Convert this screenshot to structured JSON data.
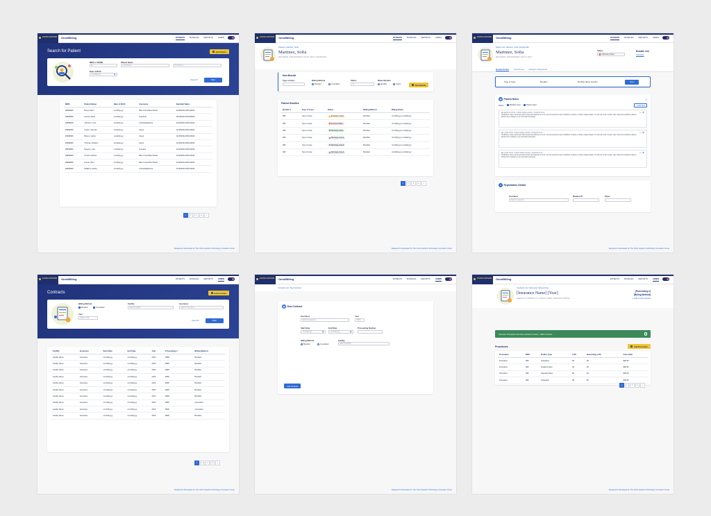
{
  "header": {
    "logo_text": "JOHNS HOPKINS",
    "app_name": "OmniBilling",
    "nav": [
      "PATIENTS",
      "BUNDLES",
      "REPORTS",
      "ADMIN"
    ]
  },
  "footer": "Designed & Developed by The Johns Hopkins Technology Innovation Group",
  "search": {
    "title": "Search for Patient",
    "add_btn": "Add Patient",
    "mrn_label": "MRN or FIN/MI",
    "mrn_value": "1",
    "name_label": "Patient Name",
    "last_ph": "Last Name",
    "first_ph": "First Name",
    "dob_label": "Date of Birth",
    "dob_ph": "mm/dd/yyyy",
    "clear": "Clear All",
    "filter": "Filter",
    "columns": [
      "MRN",
      "Patient Name",
      "Date of Birth",
      "Insurance",
      "Bundled Dates"
    ],
    "rows": [
      [
        "########",
        "Reed, Aiden",
        "mm/dd/yyyy",
        "Blue Cross Blue Shield",
        "11/18/2024-05/13/2024"
      ],
      [
        "########",
        "Garcia, Maria",
        "mm/dd/yyyy",
        "CareFirst",
        "09/19/2024-05/19/2024"
      ],
      [
        "########",
        "Johnson, Lena",
        "mm/dd/yyyy",
        "UnitedHealthcare",
        "11/18/2024-05/13/2024"
      ],
      [
        "########",
        "Cohen, Hannah",
        "mm/dd/yyyy",
        "Cigna",
        "11/18/2024-05/13/2024"
      ],
      [
        "########",
        "Rivera, Carlos",
        "mm/dd/yyyy",
        "Cigna",
        "11/18/2024-05/13/2024"
      ],
      [
        "########",
        "Thomas, Rosalyn",
        "mm/dd/yyyy",
        "Aetna",
        "11/18/2024-05/13/2024"
      ],
      [
        "########",
        "Nguyen, Liam",
        "mm/dd/yyyy",
        "Humana",
        "11/18/2024-05/13/2024"
      ],
      [
        "########",
        "Al Fard, Fatima",
        "mm/dd/yyyy",
        "Blue Cross Blue Shield",
        "11/18/2024-05/13/2024"
      ],
      [
        "########",
        "Kumar, Ravi",
        "mm/dd/yyyy",
        "Blue Cross Blue Shield",
        "11/18/2024-05/13/2024"
      ],
      [
        "########",
        "Williams, Ashley",
        "mm/dd/yyyy",
        "UnitedHealthcare",
        "11/18/2024-05/13/2024"
      ]
    ],
    "pages": [
      "1",
      "2",
      "3",
      "4",
      "»"
    ]
  },
  "bundles": {
    "breadcrumb": "Patients / Martinez, Sofia",
    "patient_name": "Martinez, Sofia",
    "patient_meta": "MRN 000000  |  DOB 00/00/0000  |  AGE 00  |  SEX F  |  INSURANCE",
    "new_bundle": {
      "title": "New Bundle",
      "type_label": "Type of Case",
      "billing_label": "Billing Method",
      "billing_opts": [
        "Bundled",
        "Consultant"
      ],
      "status_label": "Status",
      "status_value": "All",
      "name_label": "Name Number",
      "name_opts": [
        "Monthly",
        "Yearly"
      ],
      "add_btn": "Add Bundle"
    },
    "section": "Patient Bundles",
    "columns": [
      "Bundle #",
      "Type of Case",
      "Status",
      "Billing Method",
      "Billing Dates"
    ],
    "rows": [
      {
        "num": "###",
        "type": "Type of case",
        "status": "Evaluation phase",
        "color": "#e9a21f",
        "bg": "#fdf2d6",
        "method": "Bundled",
        "dates": "mm/dd/yyyy-mm/dd/yyyy"
      },
      {
        "num": "###",
        "type": "Type of case",
        "status": "Interview phase",
        "color": "#d94b4b",
        "bg": "#fbe0e0",
        "method": "Bundled",
        "dates": "mm/dd/yyyy-mm/dd/yyyy"
      },
      {
        "num": "###",
        "type": "Type of case",
        "status": "Discharge active",
        "color": "#3c9d5a",
        "bg": "#dcf1e2",
        "method": "Bundled",
        "dates": "mm/dd/yyyy-mm/dd/yyyy"
      },
      {
        "num": "###",
        "type": "Type of case",
        "status": "Discharge closed",
        "color": "#7a7f8a",
        "bg": "#e9eaee",
        "method": "Bundled",
        "dates": "mm/dd/yyyy-mm/dd/yyyy"
      },
      {
        "num": "###",
        "type": "Type of case",
        "status": "Discharge closed",
        "color": "#7a7f8a",
        "bg": "#e9eaee",
        "method": "Bundled",
        "dates": "mm/dd/yyyy-mm/dd/yyyy"
      },
      {
        "num": "###",
        "type": "Type of case",
        "status": "Discharge closed",
        "color": "#7a7f8a",
        "bg": "#e9eaee",
        "method": "Bundled",
        "dates": "mm/dd/yyyy-mm/dd/yyyy"
      }
    ],
    "pages": [
      "1",
      "2",
      "3",
      "4",
      "»"
    ]
  },
  "bundle_detail": {
    "breadcrumb": "Patient List / Martinez, Sofia / Bundle ###",
    "patient_name": "Martinez, Sofia",
    "patient_meta": "MRN 000000  |  DOB 00/00/0000  |  AGE 00  |  SEX F",
    "status_label": "Status",
    "status_value": "Unknown phase",
    "bundle_no": "Bundle ###",
    "bundle_sub": "Subscribe",
    "tabs": [
      "Bundle Details",
      "Events Log",
      "Charges & Payments"
    ],
    "summary": [
      "Type of Case",
      "Bundled",
      "Monthly Name Number"
    ],
    "summary_btn": "Save",
    "notes_title": "Patient Notes",
    "notes_filter": "Filters:",
    "notes_opts": [
      "Medical notes",
      "Claims notes"
    ],
    "add_note": "Add Note",
    "note_meta": [
      "MEDICAL NOTE | USER NAME (LEVEL) | 00/00/00 00:00",
      "CLAIM NOTE | USER NAME (LEVEL) | 00/00/00 00:00",
      "CLAIM NOTE | USER NAME (LEVEL) | 00/00/00 00:00"
    ],
    "note_text": "Vestibulum, dolor, accumsan felis tempor quis lacinia vel ut elit, sed do eiusmod tempor incididunt ut labore et dolore magna aliqua. Ut enim ad minim veniam, quis nostrud exercitation ullamco laboris nisi ut aliquip ex ea commodo consequat.",
    "reg_title": "Registration Details",
    "reg_ins_label": "Insurance",
    "reg_ins_ph": "Select Insurance",
    "reg_member_label": "Member ID",
    "reg_payer_label": "Payer"
  },
  "contracts": {
    "title": "Contracts",
    "add_btn": "Add Contract",
    "billing_label": "Billing Method",
    "billing_opts": [
      "Bundled",
      "Consultant"
    ],
    "facility_label": "Facility",
    "facility_ph": "Select Facility",
    "insurance_label": "Insurance",
    "insurance_ph": "Select Insurance",
    "year_label": "Year",
    "year_ph": "Select Year",
    "clear": "Clear All",
    "filter": "Filter",
    "columns": [
      "Facility",
      "Insurance",
      "Start Date",
      "End Date",
      "Year",
      "Proceeding #",
      "Billing Method"
    ],
    "rows": [
      [
        "Facility Name",
        "Insurance",
        "mm/dd/yyyy",
        "mm/dd/yyyy",
        "2023",
        "####",
        "Bundled"
      ],
      [
        "Facility Name",
        "Insurance",
        "mm/dd/yyyy",
        "mm/dd/yyyy",
        "2023",
        "####",
        "Bundled"
      ],
      [
        "Facility Name",
        "Insurance",
        "mm/dd/yyyy",
        "mm/dd/yyyy",
        "2023",
        "####",
        "Bundled"
      ],
      [
        "Facility Name",
        "Insurance",
        "mm/dd/yyyy",
        "mm/dd/yyyy",
        "2023",
        "####",
        "Bundled"
      ],
      [
        "Facility Name",
        "Insurance",
        "mm/dd/yyyy",
        "mm/dd/yyyy",
        "2023",
        "####",
        "Bundled"
      ],
      [
        "Facility Name",
        "Insurance",
        "mm/dd/yyyy",
        "mm/dd/yyyy",
        "2023",
        "####",
        "Bundled"
      ],
      [
        "Facility Name",
        "Insurance",
        "mm/dd/yyyy",
        "mm/dd/yyyy",
        "2023",
        "####",
        "Bundled"
      ],
      [
        "Facility Name",
        "Insurance",
        "mm/dd/yyyy",
        "mm/dd/yyyy",
        "2023",
        "####",
        "Consultant"
      ],
      [
        "Facility Name",
        "Insurance",
        "mm/dd/yyyy",
        "mm/dd/yyyy",
        "2023",
        "####",
        "Consultant"
      ],
      [
        "Facility Name",
        "Insurance",
        "mm/dd/yyyy",
        "mm/dd/yyyy",
        "2023",
        "####",
        "Bundled"
      ]
    ],
    "pages": [
      "1",
      "2",
      "3",
      "4",
      "»"
    ]
  },
  "new_contract": {
    "breadcrumb": "Contracts List / New Contract",
    "title": "New Contract",
    "insurance_label": "Insurance",
    "insurance_ph": "Select Insurance",
    "year_label": "Year",
    "year_value": "2023",
    "start_label": "Start Date",
    "end_label": "End Date",
    "date_ph": "mm/dd/yyyy",
    "proc_label": "Proceeding Number",
    "billing_label": "Billing Method",
    "billing_opts": [
      "Bundled",
      "Consultant"
    ],
    "facility_label": "Facility",
    "facility_ph": "Select Facility",
    "save_btn": "Add Contract"
  },
  "contract_detail": {
    "breadcrumb": "Contracts List / [Insurance Name] [Year]",
    "title": "[Insurance Name] [Year]",
    "meta": "MM/DD/YYYY-MM/DD/YYYY  |  FACILITY NAME: UNKNOWN HOSPITAL",
    "proc": "[Proceeding #]",
    "billing": "[Billing Method]",
    "edit": "Edit Contract Details",
    "success": "Success: Procedure has been added to Aetna - 2023 Contract.",
    "section": "Procedures",
    "add_btn": "Add Procedure",
    "columns": [
      "Procedure",
      "DRG",
      "Outlier Type",
      "LOS",
      "Overriding LOS",
      "Case Rate"
    ],
    "rows": [
      [
        "Procedure",
        "###",
        "Outpatient",
        "##",
        "##",
        "$##.##"
      ],
      [
        "Procedure",
        "###",
        "Inpatient Days",
        "##",
        "##",
        "$##.##"
      ],
      [
        "Procedure",
        "###",
        "Calendar Days",
        "##",
        "##",
        "$##.##"
      ],
      [
        "Procedure",
        "###",
        "Outpatient",
        "##",
        "##",
        "$##.##"
      ]
    ],
    "pages": [
      "1",
      "2",
      "3",
      "4",
      "»"
    ]
  }
}
